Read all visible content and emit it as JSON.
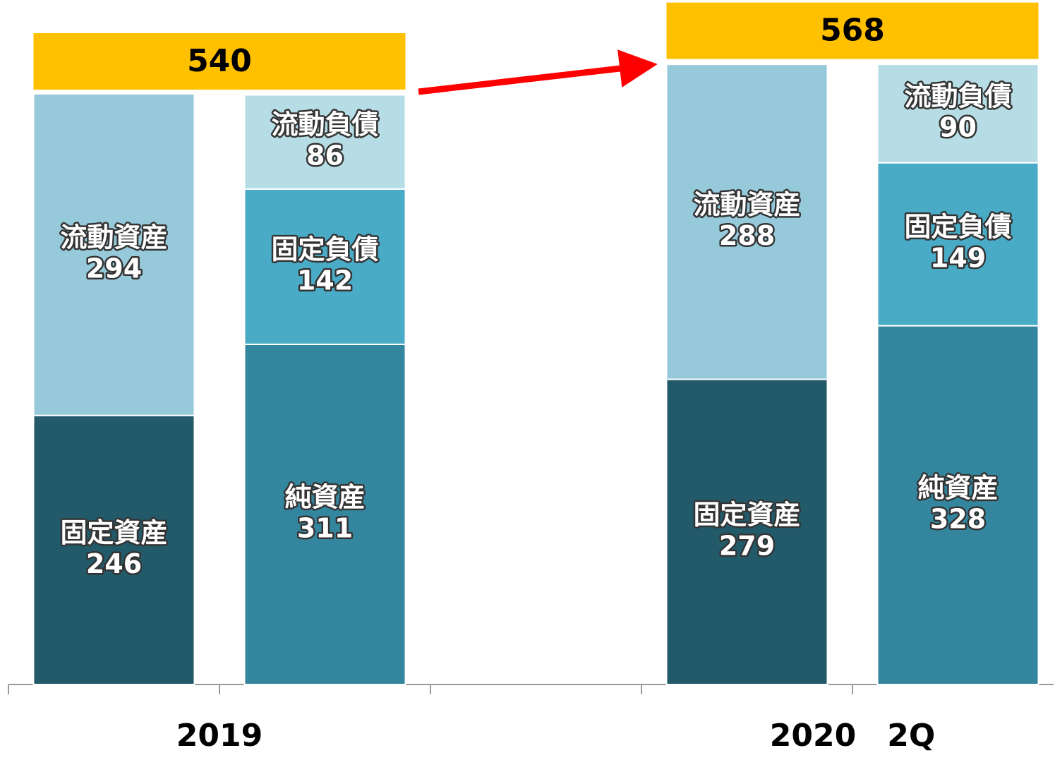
{
  "chart_data": {
    "type": "stacked_bar",
    "ylim": [
      0,
      600
    ],
    "total_color": "#ffc000",
    "groups": [
      {
        "label": "2019",
        "total": 540,
        "columns": [
          [
            {
              "name": "固定資産",
              "value": 246,
              "color": "#235a6a"
            },
            {
              "name": "流動資産",
              "value": 294,
              "color": "#96cadb"
            }
          ],
          [
            {
              "name": "純資産",
              "value": 311,
              "color": "#34869f"
            },
            {
              "name": "固定負債",
              "value": 142,
              "color": "#4aabc6"
            },
            {
              "name": "流動負債",
              "value": 86,
              "color": "#b6dde6"
            }
          ]
        ]
      },
      {
        "label": "2020　2Q",
        "total": 568,
        "columns": [
          [
            {
              "name": "固定資産",
              "value": 279,
              "color": "#235a6a"
            },
            {
              "name": "流動資産",
              "value": 288,
              "color": "#96cadb"
            }
          ],
          [
            {
              "name": "純資産",
              "value": 328,
              "color": "#34869f"
            },
            {
              "name": "固定負債",
              "value": 149,
              "color": "#4aabc6"
            },
            {
              "name": "流動負債",
              "value": 90,
              "color": "#b6dde6"
            }
          ]
        ]
      }
    ]
  }
}
